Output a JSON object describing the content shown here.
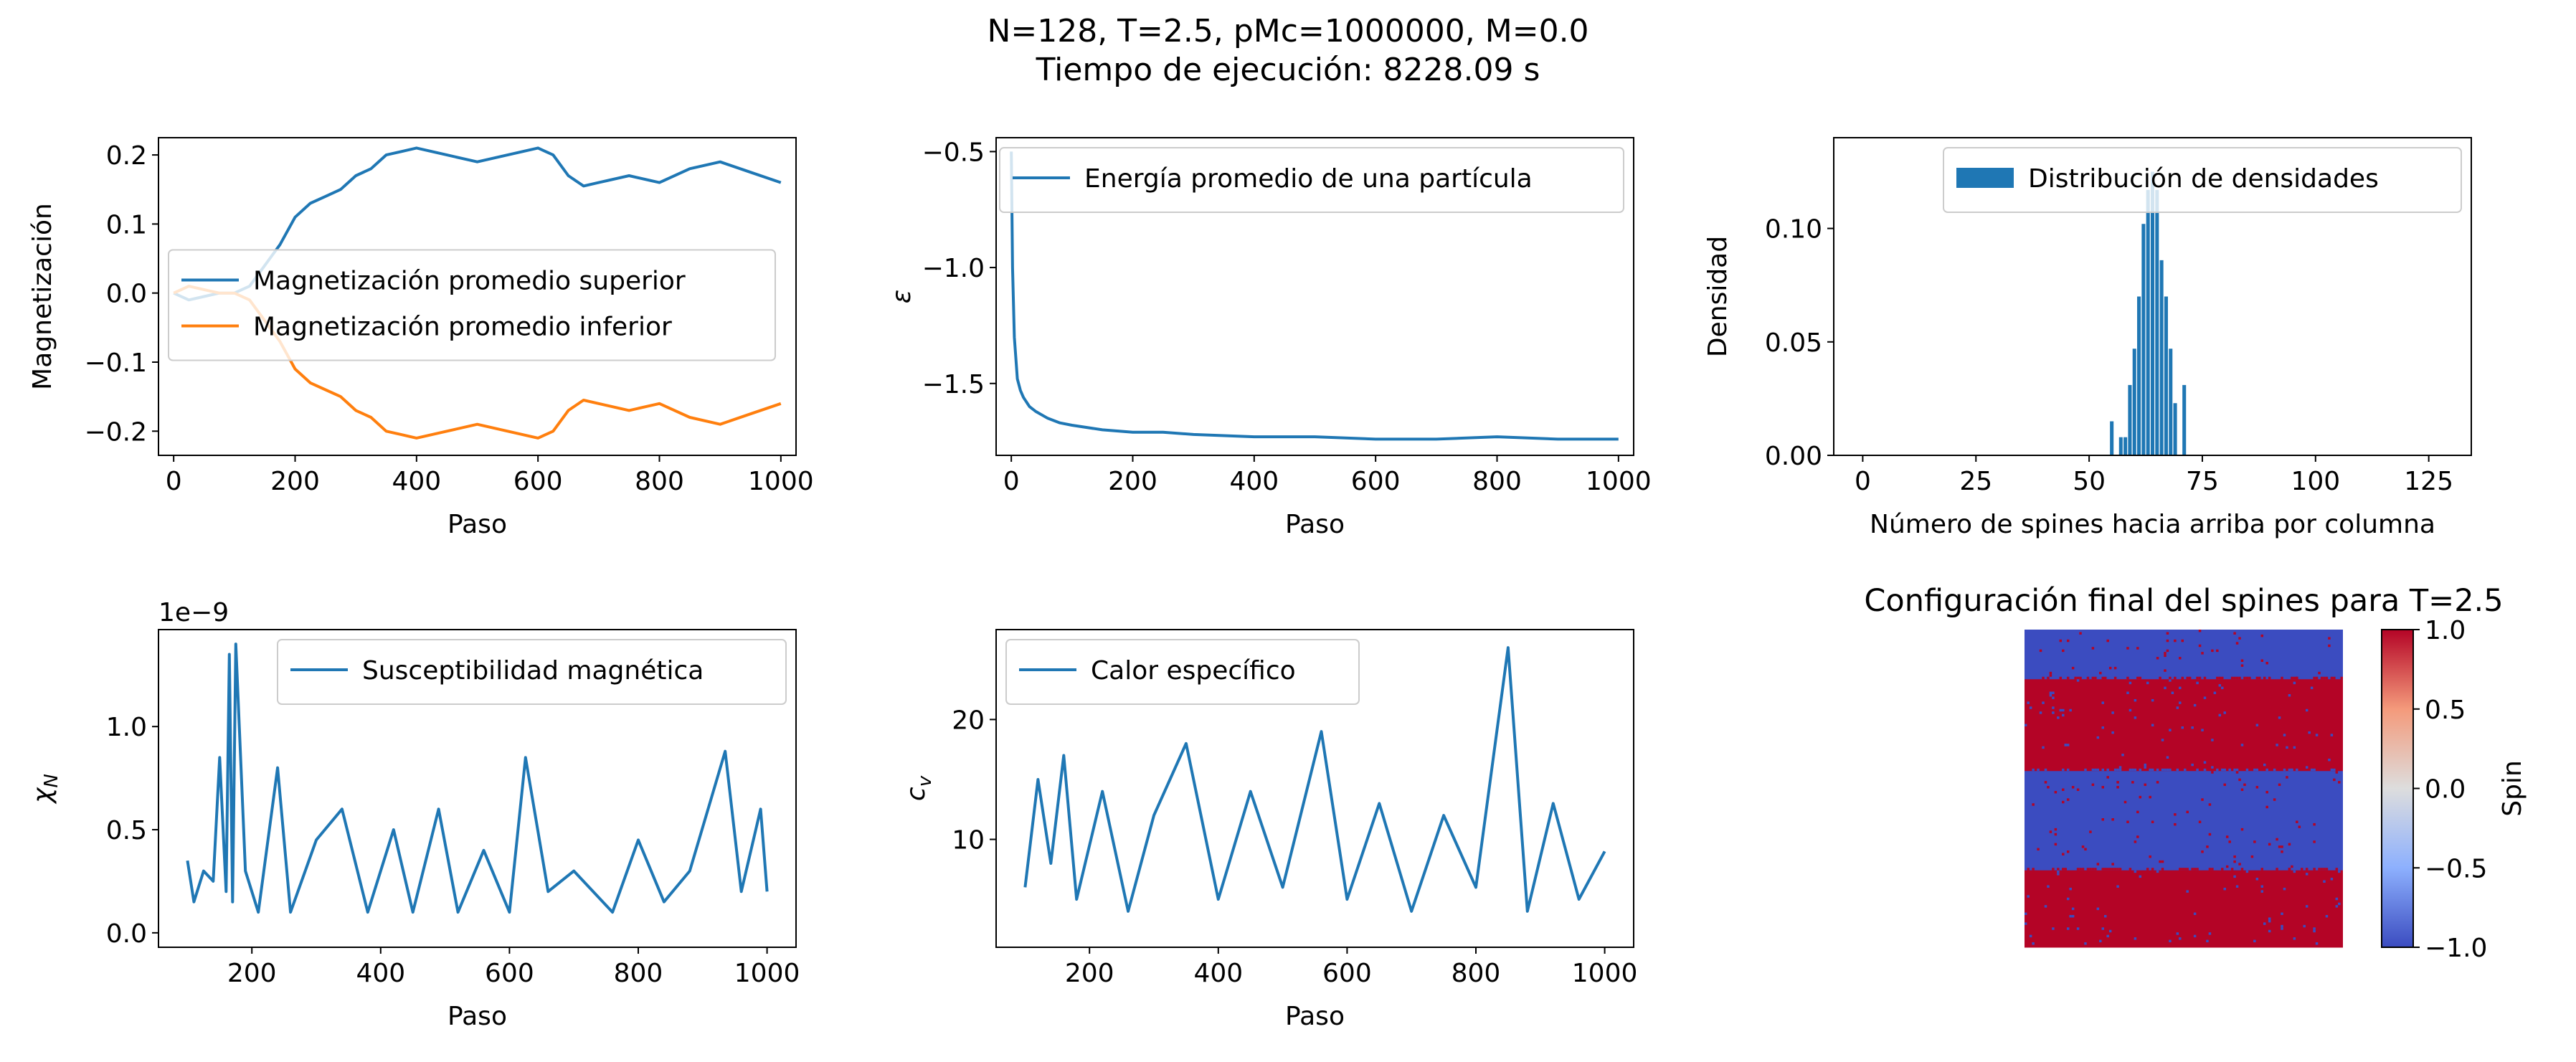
{
  "figure": {
    "title_line1": "N=128, T=2.5, pMc=1000000, M=0.0",
    "title_line2": "Tiempo de ejecución: 8228.09 s"
  },
  "colors": {
    "blue": "#1f77b4",
    "orange": "#ff7f0e",
    "spin_up": "#b40426",
    "spin_down": "#3b4cc0"
  },
  "chart_data": [
    {
      "type": "line",
      "xlabel": "Paso",
      "ylabel": "Magnetización",
      "xlim": [
        -25,
        1025
      ],
      "ylim": [
        -0.235,
        0.225
      ],
      "xticks": [
        0,
        200,
        400,
        600,
        800,
        1000
      ],
      "yticks": [
        -0.2,
        -0.1,
        0.0,
        0.1,
        0.2
      ],
      "grid": false,
      "legend": "center-left",
      "series": [
        {
          "name": "Magnetización promedio superior",
          "color": "#1f77b4",
          "x": [
            0,
            25,
            50,
            75,
            100,
            125,
            150,
            175,
            200,
            225,
            250,
            275,
            300,
            325,
            350,
            375,
            400,
            450,
            500,
            550,
            600,
            625,
            650,
            675,
            700,
            750,
            800,
            850,
            900,
            950,
            1000
          ],
          "values": [
            0.0,
            -0.01,
            -0.005,
            0.0,
            0.0,
            0.01,
            0.04,
            0.07,
            0.11,
            0.13,
            0.14,
            0.15,
            0.17,
            0.18,
            0.2,
            0.205,
            0.21,
            0.2,
            0.19,
            0.2,
            0.21,
            0.2,
            0.17,
            0.155,
            0.16,
            0.17,
            0.16,
            0.18,
            0.19,
            0.175,
            0.16
          ]
        },
        {
          "name": "Magnetización promedio inferior",
          "color": "#ff7f0e",
          "x": [
            0,
            25,
            50,
            75,
            100,
            125,
            150,
            175,
            200,
            225,
            250,
            275,
            300,
            325,
            350,
            375,
            400,
            450,
            500,
            550,
            600,
            625,
            650,
            675,
            700,
            750,
            800,
            850,
            900,
            950,
            1000
          ],
          "values": [
            0.0,
            0.01,
            0.005,
            0.0,
            0.0,
            -0.01,
            -0.04,
            -0.07,
            -0.11,
            -0.13,
            -0.14,
            -0.15,
            -0.17,
            -0.18,
            -0.2,
            -0.205,
            -0.21,
            -0.2,
            -0.19,
            -0.2,
            -0.21,
            -0.2,
            -0.17,
            -0.155,
            -0.16,
            -0.17,
            -0.16,
            -0.18,
            -0.19,
            -0.175,
            -0.16
          ]
        }
      ]
    },
    {
      "type": "line",
      "xlabel": "Paso",
      "ylabel": "ε",
      "xlim": [
        -25,
        1025
      ],
      "ylim": [
        -1.81,
        -0.44
      ],
      "xticks": [
        0,
        200,
        400,
        600,
        800,
        1000
      ],
      "yticks": [
        -1.5,
        -1.0,
        -0.5
      ],
      "grid": false,
      "legend": "top-right",
      "series": [
        {
          "name": "Energía promedio de una partícula",
          "color": "#1f77b4",
          "x": [
            0,
            2,
            5,
            10,
            15,
            20,
            30,
            40,
            60,
            80,
            100,
            150,
            200,
            250,
            300,
            400,
            500,
            600,
            700,
            800,
            900,
            1000
          ],
          "values": [
            -0.5,
            -1.0,
            -1.3,
            -1.48,
            -1.53,
            -1.56,
            -1.6,
            -1.62,
            -1.65,
            -1.67,
            -1.68,
            -1.7,
            -1.71,
            -1.71,
            -1.72,
            -1.73,
            -1.73,
            -1.74,
            -1.74,
            -1.73,
            -1.74,
            -1.74
          ]
        }
      ]
    },
    {
      "type": "bar",
      "xlabel": "Número de spines hacia arriba por columna",
      "ylabel": "Densidad",
      "xlim": [
        -6.4,
        134.4
      ],
      "ylim": [
        0,
        0.14
      ],
      "xticks": [
        0,
        25,
        50,
        75,
        100,
        125
      ],
      "yticks": [
        0.0,
        0.05,
        0.1
      ],
      "grid": false,
      "legend": "top-right",
      "series": [
        {
          "name": "Distribución de densidades",
          "color": "#1f77b4",
          "categories": [
            55,
            57,
            58,
            59,
            60,
            61,
            62,
            63,
            64,
            65,
            66,
            67,
            68,
            69,
            71
          ],
          "values": [
            0.015,
            0.008,
            0.008,
            0.031,
            0.047,
            0.07,
            0.102,
            0.117,
            0.125,
            0.117,
            0.086,
            0.07,
            0.047,
            0.023,
            0.031
          ]
        }
      ]
    },
    {
      "type": "line",
      "xlabel": "Paso",
      "ylabel": "χN",
      "offset_text": "1e−9",
      "xlim": [
        55,
        1045
      ],
      "ylim": [
        -0.07,
        1.47
      ],
      "xticks": [
        200,
        400,
        600,
        800,
        1000
      ],
      "yticks": [
        0.0,
        0.5,
        1.0
      ],
      "grid": false,
      "legend": "top-right",
      "series": [
        {
          "name": "Susceptibilidad magnética",
          "color": "#1f77b4",
          "x": [
            100,
            110,
            125,
            140,
            150,
            160,
            165,
            170,
            175,
            190,
            210,
            240,
            260,
            300,
            340,
            380,
            420,
            450,
            490,
            520,
            560,
            600,
            625,
            660,
            700,
            760,
            800,
            840,
            880,
            935,
            960,
            990,
            1000
          ],
          "values": [
            0.35,
            0.15,
            0.3,
            0.25,
            0.85,
            0.2,
            1.35,
            0.15,
            1.4,
            0.3,
            0.1,
            0.8,
            0.1,
            0.45,
            0.6,
            0.1,
            0.5,
            0.1,
            0.6,
            0.1,
            0.4,
            0.1,
            0.85,
            0.2,
            0.3,
            0.1,
            0.45,
            0.15,
            0.3,
            0.88,
            0.2,
            0.6,
            0.2
          ]
        }
      ]
    },
    {
      "type": "line",
      "xlabel": "Paso",
      "ylabel": "cv",
      "xlim": [
        55,
        1045
      ],
      "ylim": [
        1.0,
        27.5
      ],
      "xticks": [
        200,
        400,
        600,
        800,
        1000
      ],
      "yticks": [
        10,
        20
      ],
      "grid": false,
      "legend": "top-left",
      "series": [
        {
          "name": "Calor específico",
          "color": "#1f77b4",
          "x": [
            100,
            120,
            140,
            160,
            180,
            220,
            260,
            300,
            350,
            400,
            450,
            500,
            560,
            600,
            650,
            700,
            750,
            800,
            850,
            880,
            920,
            960,
            1000
          ],
          "values": [
            6,
            15,
            8,
            17,
            5,
            14,
            4,
            12,
            18,
            5,
            14,
            6,
            19,
            5,
            13,
            4,
            12,
            6,
            26,
            4,
            13,
            5,
            9
          ]
        }
      ]
    },
    {
      "type": "heatmap",
      "title": "Configuración final del spines para T=2.5",
      "colorbar_label": "Spin",
      "vmin": -1.0,
      "vmax": 1.0,
      "colorbar_ticks": [
        -1.0,
        -0.5,
        0.0,
        0.5,
        1.0
      ],
      "grid_size": 128,
      "band_rows": [
        {
          "from": 0,
          "to": 20,
          "value": -1
        },
        {
          "from": 20,
          "to": 57,
          "value": 1
        },
        {
          "from": 57,
          "to": 97,
          "value": -1
        },
        {
          "from": 97,
          "to": 128,
          "value": 1
        }
      ]
    }
  ]
}
